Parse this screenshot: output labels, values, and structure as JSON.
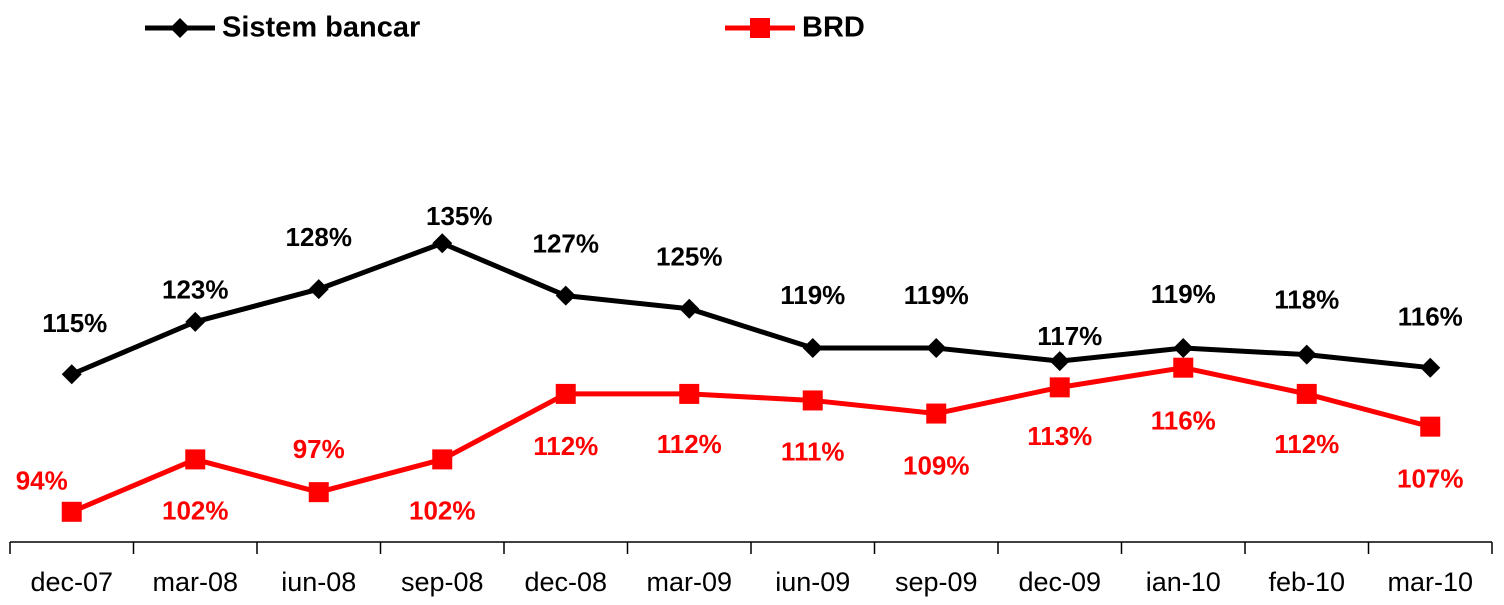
{
  "chart_data": {
    "type": "line",
    "categories": [
      "dec-07",
      "mar-08",
      "iun-08",
      "sep-08",
      "dec-08",
      "mar-09",
      "iun-09",
      "sep-09",
      "dec-09",
      "ian-10",
      "feb-10",
      "mar-10"
    ],
    "series": [
      {
        "name": "Sistem bancar",
        "color": "#000000",
        "marker": "diamond",
        "values": [
          115,
          123,
          128,
          135,
          127,
          125,
          119,
          119,
          117,
          119,
          118,
          116
        ],
        "value_labels": [
          "115%",
          "123%",
          "128%",
          "135%",
          "127%",
          "125%",
          "119%",
          "119%",
          "117%",
          "119%",
          "118%",
          "116%"
        ]
      },
      {
        "name": "BRD",
        "color": "#ff0000",
        "marker": "square",
        "values": [
          94,
          102,
          97,
          102,
          112,
          112,
          111,
          109,
          113,
          116,
          112,
          107
        ],
        "value_labels": [
          "94%",
          "102%",
          "97%",
          "102%",
          "112%",
          "112%",
          "111%",
          "109%",
          "113%",
          "116%",
          "112%",
          "107%"
        ]
      }
    ],
    "ylim": [
      90,
      150
    ],
    "legend": "top"
  }
}
